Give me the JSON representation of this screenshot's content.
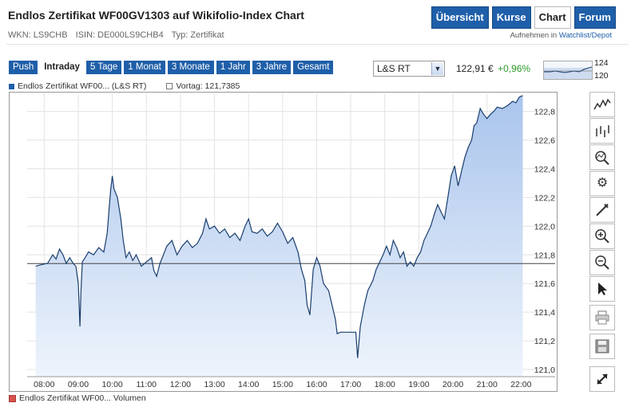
{
  "header": {
    "title": "Endlos Zertifikat WF00GV1303 auf Wikifolio-Index Chart",
    "nav": [
      {
        "label": "Übersicht",
        "active": false
      },
      {
        "label": "Kurse",
        "active": false
      },
      {
        "label": "Chart",
        "active": true
      },
      {
        "label": "Forum",
        "active": false
      }
    ],
    "wkn": "WKN: LS9CHB",
    "isin": "ISIN: DE000LS9CHB4",
    "typ": "Typ: Zertifikat",
    "watch_prefix": "Aufnehmen in",
    "watch_link": "Watchlist/Depot"
  },
  "timeframes": [
    {
      "label": "Push",
      "active": false
    },
    {
      "label": "Intraday",
      "active": true
    },
    {
      "label": "5 Tage",
      "active": false
    },
    {
      "label": "1 Monat",
      "active": false
    },
    {
      "label": "3 Monate",
      "active": false
    },
    {
      "label": "1 Jahr",
      "active": false
    },
    {
      "label": "3 Jahre",
      "active": false
    },
    {
      "label": "Gesamt",
      "active": false
    }
  ],
  "exchange_select": {
    "value": "L&S RT"
  },
  "quote": {
    "price": "122,91 €",
    "change": "+0,96%"
  },
  "mini_chart": {
    "high": "124",
    "low": "120"
  },
  "legend": {
    "series": "Endlos Zertifikat WF00... (L&S RT)",
    "previous": "Vortag: 121,7385",
    "volume": "Endlos Zertifikat WF00... Volumen"
  },
  "colors": {
    "brand": "#1f5fa9",
    "series_line": "#1a3e6e",
    "area_top": "#a9c4ec",
    "area_bottom": "#eef4fc",
    "up": "#2a9a2a"
  },
  "tools": [
    "line-chart-icon",
    "ohlc-chart-icon",
    "indicator-icon",
    "settings-icon",
    "draw-icon",
    "zoom-in-icon",
    "zoom-out-icon",
    "pointer-icon",
    "print-icon",
    "save-icon",
    "fullscreen-icon"
  ],
  "chart_data": {
    "type": "area",
    "x_ticks": [
      "08:00",
      "09:00",
      "10:00",
      "11:00",
      "12:00",
      "13:00",
      "14:00",
      "15:00",
      "16:00",
      "17:00",
      "18:00",
      "19:00",
      "20:00",
      "21:00",
      "22:00"
    ],
    "y_ticks": [
      "122,8",
      "122,6",
      "122,4",
      "122,2",
      "122,0",
      "121,8",
      "121,6",
      "121,4",
      "121,2",
      "121,0"
    ],
    "ylim": [
      120.95,
      122.92
    ],
    "xlim": [
      7.5,
      23.0
    ],
    "previous_close": 121.7385,
    "series": [
      {
        "name": "Endlos Zertifikat WF00... (L&S RT)",
        "points": [
          [
            7.75,
            121.72
          ],
          [
            7.9,
            121.73
          ],
          [
            8.1,
            121.74
          ],
          [
            8.25,
            121.8
          ],
          [
            8.35,
            121.77
          ],
          [
            8.45,
            121.84
          ],
          [
            8.55,
            121.8
          ],
          [
            8.65,
            121.74
          ],
          [
            8.75,
            121.78
          ],
          [
            8.85,
            121.74
          ],
          [
            8.93,
            121.72
          ],
          [
            9.0,
            121.6
          ],
          [
            9.05,
            121.3
          ],
          [
            9.08,
            121.55
          ],
          [
            9.12,
            121.75
          ],
          [
            9.2,
            121.78
          ],
          [
            9.3,
            121.82
          ],
          [
            9.45,
            121.8
          ],
          [
            9.6,
            121.85
          ],
          [
            9.75,
            121.82
          ],
          [
            9.85,
            121.95
          ],
          [
            9.9,
            122.1
          ],
          [
            9.95,
            122.25
          ],
          [
            10.0,
            122.35
          ],
          [
            10.05,
            122.26
          ],
          [
            10.15,
            122.2
          ],
          [
            10.25,
            122.05
          ],
          [
            10.32,
            121.9
          ],
          [
            10.4,
            121.78
          ],
          [
            10.5,
            121.82
          ],
          [
            10.6,
            121.76
          ],
          [
            10.7,
            121.8
          ],
          [
            10.85,
            121.72
          ],
          [
            11.0,
            121.75
          ],
          [
            11.15,
            121.78
          ],
          [
            11.22,
            121.69
          ],
          [
            11.3,
            121.65
          ],
          [
            11.4,
            121.74
          ],
          [
            11.5,
            121.8
          ],
          [
            11.6,
            121.86
          ],
          [
            11.75,
            121.9
          ],
          [
            11.9,
            121.8
          ],
          [
            12.05,
            121.86
          ],
          [
            12.2,
            121.9
          ],
          [
            12.35,
            121.85
          ],
          [
            12.5,
            121.88
          ],
          [
            12.65,
            121.95
          ],
          [
            12.75,
            122.05
          ],
          [
            12.85,
            121.98
          ],
          [
            13.0,
            122.0
          ],
          [
            13.15,
            121.95
          ],
          [
            13.3,
            121.98
          ],
          [
            13.45,
            121.92
          ],
          [
            13.6,
            121.95
          ],
          [
            13.75,
            121.9
          ],
          [
            13.9,
            122.0
          ],
          [
            14.0,
            122.05
          ],
          [
            14.1,
            121.96
          ],
          [
            14.25,
            121.95
          ],
          [
            14.4,
            121.98
          ],
          [
            14.55,
            121.93
          ],
          [
            14.7,
            121.96
          ],
          [
            14.85,
            122.02
          ],
          [
            15.0,
            121.96
          ],
          [
            15.15,
            121.88
          ],
          [
            15.3,
            121.92
          ],
          [
            15.45,
            121.82
          ],
          [
            15.55,
            121.7
          ],
          [
            15.65,
            121.62
          ],
          [
            15.72,
            121.45
          ],
          [
            15.8,
            121.38
          ],
          [
            15.9,
            121.7
          ],
          [
            16.0,
            121.78
          ],
          [
            16.1,
            121.72
          ],
          [
            16.2,
            121.6
          ],
          [
            16.35,
            121.55
          ],
          [
            16.45,
            121.45
          ],
          [
            16.55,
            121.35
          ],
          [
            16.6,
            121.25
          ],
          [
            16.7,
            121.26
          ],
          [
            17.0,
            121.26
          ],
          [
            17.15,
            121.26
          ],
          [
            17.2,
            121.08
          ],
          [
            17.28,
            121.3
          ],
          [
            17.4,
            121.45
          ],
          [
            17.5,
            121.55
          ],
          [
            17.65,
            121.62
          ],
          [
            17.75,
            121.7
          ],
          [
            17.85,
            121.75
          ],
          [
            17.95,
            121.8
          ],
          [
            18.05,
            121.86
          ],
          [
            18.15,
            121.8
          ],
          [
            18.25,
            121.9
          ],
          [
            18.35,
            121.85
          ],
          [
            18.45,
            121.78
          ],
          [
            18.55,
            121.82
          ],
          [
            18.65,
            121.72
          ],
          [
            18.75,
            121.75
          ],
          [
            18.85,
            121.72
          ],
          [
            18.95,
            121.78
          ],
          [
            19.05,
            121.82
          ],
          [
            19.15,
            121.9
          ],
          [
            19.25,
            121.95
          ],
          [
            19.35,
            122.0
          ],
          [
            19.45,
            122.08
          ],
          [
            19.55,
            122.15
          ],
          [
            19.65,
            122.1
          ],
          [
            19.75,
            122.05
          ],
          [
            19.85,
            122.2
          ],
          [
            19.95,
            122.35
          ],
          [
            20.05,
            122.42
          ],
          [
            20.15,
            122.28
          ],
          [
            20.25,
            122.38
          ],
          [
            20.35,
            122.48
          ],
          [
            20.45,
            122.55
          ],
          [
            20.55,
            122.6
          ],
          [
            20.62,
            122.7
          ],
          [
            20.7,
            122.72
          ],
          [
            20.8,
            122.82
          ],
          [
            20.9,
            122.78
          ],
          [
            21.0,
            122.75
          ],
          [
            21.1,
            122.78
          ],
          [
            21.2,
            122.8
          ],
          [
            21.3,
            122.83
          ],
          [
            21.45,
            122.82
          ],
          [
            21.6,
            122.84
          ],
          [
            21.75,
            122.87
          ],
          [
            21.85,
            122.86
          ],
          [
            21.95,
            122.9
          ],
          [
            22.05,
            122.91
          ]
        ]
      }
    ]
  }
}
